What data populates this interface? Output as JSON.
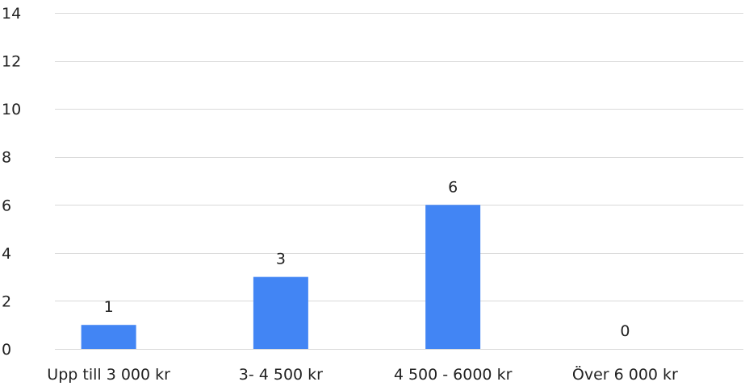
{
  "chart_data": {
    "type": "bar",
    "title": "",
    "xlabel": "",
    "ylabel": "",
    "categories": [
      "Upp till 3 000 kr",
      "3- 4 500 kr",
      "4 500 - 6000 kr",
      "Över 6 000 kr"
    ],
    "values": [
      1,
      3,
      6,
      0
    ],
    "data_labels": [
      "1",
      "3",
      "6",
      "0"
    ],
    "ylim": [
      0,
      14
    ],
    "yticks": [
      0,
      2,
      4,
      6,
      8,
      10,
      12,
      14
    ],
    "ytick_labels": [
      "0",
      "2",
      "4",
      "6",
      "8",
      "10",
      "12",
      "14"
    ],
    "grid": true,
    "legend": "none",
    "colors": {
      "bar": "#4285f4",
      "grid": "#d9d9d9",
      "text": "#222222"
    }
  }
}
